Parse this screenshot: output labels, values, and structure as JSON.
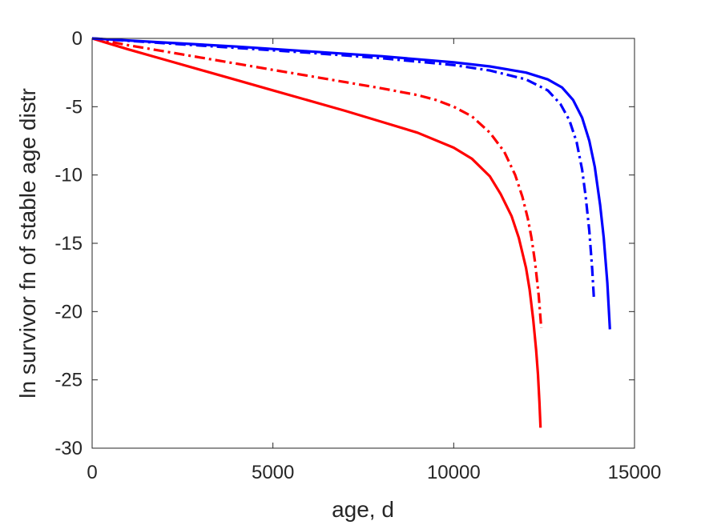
{
  "chart_data": {
    "type": "line",
    "xlabel": "age, d",
    "ylabel": "ln survivor fn of stable age distr",
    "xlim": [
      0,
      15000
    ],
    "ylim": [
      -30,
      0
    ],
    "xticks": [
      0,
      5000,
      10000,
      15000
    ],
    "xtick_labels": [
      "0",
      "5000",
      "10000",
      "15000"
    ],
    "yticks": [
      0,
      -5,
      -10,
      -15,
      -20,
      -25,
      -30
    ],
    "ytick_labels": [
      "0",
      "-5",
      "-10",
      "-15",
      "-20",
      "-25",
      "-30"
    ],
    "grid": false,
    "legend": "none",
    "series": [
      {
        "color": "#ff0000",
        "style": "solid",
        "x": [
          0,
          1000,
          2000,
          3000,
          4000,
          5000,
          6000,
          7000,
          8000,
          9000,
          10000,
          10500,
          11000,
          11300,
          11600,
          11800,
          12000,
          12100,
          12200,
          12280,
          12330,
          12370,
          12400
        ],
        "y": [
          0,
          -0.8,
          -1.55,
          -2.3,
          -3.05,
          -3.8,
          -4.55,
          -5.3,
          -6.1,
          -6.9,
          -8.0,
          -8.8,
          -10.1,
          -11.4,
          -13.0,
          -14.6,
          -16.8,
          -18.4,
          -20.6,
          -22.8,
          -24.6,
          -26.6,
          -28.5
        ]
      },
      {
        "color": "#ff0000",
        "style": "dashdot",
        "x": [
          0,
          1000,
          2000,
          3000,
          4000,
          5000,
          6000,
          7000,
          8000,
          9000,
          9500,
          10000,
          10500,
          11000,
          11400,
          11700,
          11900,
          12050,
          12150,
          12250,
          12350,
          12420
        ],
        "y": [
          0,
          -0.5,
          -0.95,
          -1.4,
          -1.85,
          -2.3,
          -2.75,
          -3.2,
          -3.65,
          -4.15,
          -4.5,
          -5.0,
          -5.7,
          -6.9,
          -8.3,
          -10.0,
          -11.6,
          -13.2,
          -14.6,
          -16.4,
          -18.8,
          -21.2
        ]
      },
      {
        "color": "#0000ff",
        "style": "solid",
        "x": [
          0,
          2000,
          4000,
          6000,
          8000,
          10000,
          11000,
          12000,
          12600,
          13000,
          13300,
          13550,
          13750,
          13900,
          14050,
          14150,
          14250,
          14320
        ],
        "y": [
          0,
          -0.3,
          -0.6,
          -0.95,
          -1.3,
          -1.75,
          -2.05,
          -2.5,
          -3.0,
          -3.6,
          -4.5,
          -5.8,
          -7.5,
          -9.4,
          -12.2,
          -14.6,
          -17.9,
          -21.3
        ]
      },
      {
        "color": "#0000ff",
        "style": "dashdot",
        "x": [
          0,
          2000,
          4000,
          6000,
          8000,
          10000,
          11000,
          12000,
          12600,
          12950,
          13200,
          13400,
          13550,
          13650,
          13750,
          13830,
          13880
        ],
        "y": [
          0,
          -0.35,
          -0.7,
          -1.05,
          -1.45,
          -1.95,
          -2.35,
          -3.0,
          -3.8,
          -4.8,
          -6.0,
          -7.6,
          -9.6,
          -11.6,
          -14.1,
          -16.9,
          -19.2
        ]
      }
    ]
  }
}
